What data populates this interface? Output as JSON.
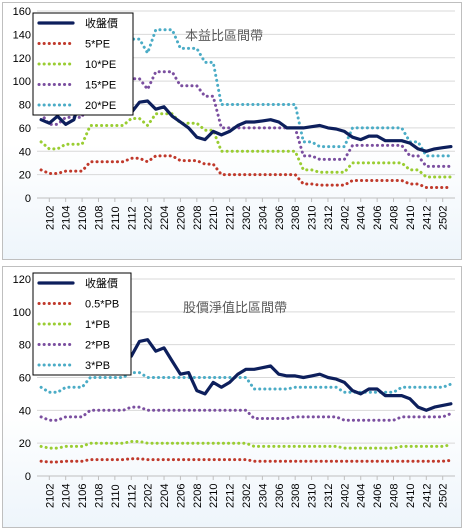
{
  "chart_data": [
    {
      "type": "line",
      "title": "本益比區間帶",
      "xlabel": "",
      "ylabel": "",
      "ylim": [
        0,
        160
      ],
      "yticks": [
        0,
        20,
        40,
        60,
        80,
        100,
        120,
        140,
        160
      ],
      "grid": true,
      "legend_position": "top-left",
      "x": [
        "2101",
        "2102",
        "2103",
        "2104",
        "2105",
        "2106",
        "2107",
        "2108",
        "2109",
        "2110",
        "2111",
        "2112",
        "2201",
        "2202",
        "2203",
        "2204",
        "2205",
        "2206",
        "2207",
        "2208",
        "2209",
        "2210",
        "2211",
        "2212",
        "2301",
        "2302",
        "2303",
        "2304",
        "2305",
        "2306",
        "2307",
        "2308",
        "2309",
        "2310",
        "2311",
        "2312",
        "2401",
        "2402",
        "2403",
        "2404",
        "2405",
        "2406",
        "2407",
        "2408",
        "2409",
        "2410",
        "2411",
        "2412",
        "2501",
        "2502",
        "2503"
      ],
      "xtick_labels": [
        "2102",
        "2104",
        "2106",
        "2108",
        "2110",
        "2112",
        "2202",
        "2204",
        "2206",
        "2208",
        "2210",
        "2212",
        "2302",
        "2304",
        "2306",
        "2308",
        "2310",
        "2312",
        "2402",
        "2404",
        "2406",
        "2408",
        "2410",
        "2412",
        "2502"
      ],
      "series": [
        {
          "name": "收盤價",
          "color": "#0d1f5c",
          "style": "solid",
          "values": [
            67,
            64,
            70,
            63,
            67,
            90,
            83,
            77,
            75,
            77,
            74,
            73,
            82,
            83,
            76,
            78,
            70,
            65,
            60,
            52,
            50,
            57,
            54,
            57,
            62,
            65,
            65,
            66,
            67,
            65,
            60,
            60,
            60,
            61,
            62,
            60,
            59,
            57,
            52,
            50,
            53,
            53,
            49,
            49,
            49,
            47,
            42,
            40,
            42,
            43,
            44
          ]
        },
        {
          "name": "5*PE",
          "color": "#c0392b",
          "style": "dotted",
          "values": [
            24,
            21,
            21,
            23,
            23,
            23,
            31,
            31,
            31,
            31,
            31,
            34,
            34,
            31,
            36,
            36,
            36,
            32,
            32,
            32,
            29,
            29,
            20,
            20,
            20,
            20,
            20,
            20,
            20,
            20,
            20,
            20,
            12,
            12,
            11,
            11,
            11,
            11,
            15,
            15,
            15,
            15,
            15,
            15,
            15,
            12,
            12,
            9,
            9,
            9,
            9
          ]
        },
        {
          "name": "10*PE",
          "color": "#9acd32",
          "style": "dotted",
          "values": [
            48,
            42,
            42,
            46,
            46,
            46,
            62,
            62,
            62,
            62,
            62,
            68,
            68,
            62,
            72,
            72,
            72,
            64,
            64,
            64,
            58,
            58,
            40,
            40,
            40,
            40,
            40,
            40,
            40,
            40,
            40,
            40,
            24,
            24,
            22,
            22,
            22,
            22,
            30,
            30,
            30,
            30,
            30,
            30,
            30,
            24,
            24,
            18,
            18,
            18,
            18
          ]
        },
        {
          "name": "15*PE",
          "color": "#7b4fa0",
          "style": "dotted",
          "values": [
            72,
            63,
            63,
            69,
            69,
            69,
            93,
            93,
            93,
            93,
            93,
            102,
            102,
            93,
            108,
            108,
            108,
            96,
            96,
            96,
            87,
            87,
            60,
            60,
            60,
            60,
            60,
            60,
            60,
            60,
            60,
            60,
            36,
            36,
            33,
            33,
            33,
            33,
            45,
            45,
            45,
            45,
            45,
            45,
            45,
            36,
            36,
            27,
            27,
            27,
            27
          ]
        },
        {
          "name": "20*PE",
          "color": "#4bacc6",
          "style": "dotted",
          "values": [
            96,
            84,
            84,
            92,
            92,
            92,
            124,
            124,
            124,
            124,
            124,
            136,
            136,
            124,
            144,
            144,
            144,
            128,
            128,
            128,
            116,
            116,
            80,
            80,
            80,
            80,
            80,
            80,
            80,
            80,
            80,
            80,
            48,
            48,
            44,
            44,
            44,
            44,
            60,
            60,
            60,
            60,
            60,
            60,
            60,
            48,
            48,
            36,
            36,
            36,
            36
          ]
        }
      ]
    },
    {
      "type": "line",
      "title": "股價淨值比區間帶",
      "xlabel": "",
      "ylabel": "",
      "ylim": [
        0,
        120
      ],
      "yticks": [
        0,
        20,
        40,
        60,
        80,
        100,
        120
      ],
      "grid": true,
      "legend_position": "top-left",
      "x": [
        "2101",
        "2102",
        "2103",
        "2104",
        "2105",
        "2106",
        "2107",
        "2108",
        "2109",
        "2110",
        "2111",
        "2112",
        "2201",
        "2202",
        "2203",
        "2204",
        "2205",
        "2206",
        "2207",
        "2208",
        "2209",
        "2210",
        "2211",
        "2212",
        "2301",
        "2302",
        "2303",
        "2304",
        "2305",
        "2306",
        "2307",
        "2308",
        "2309",
        "2310",
        "2311",
        "2312",
        "2401",
        "2402",
        "2403",
        "2404",
        "2405",
        "2406",
        "2407",
        "2408",
        "2409",
        "2410",
        "2411",
        "2412",
        "2501",
        "2502",
        "2503"
      ],
      "xtick_labels": [
        "2102",
        "2104",
        "2106",
        "2108",
        "2110",
        "2112",
        "2202",
        "2204",
        "2206",
        "2208",
        "2210",
        "2212",
        "2302",
        "2304",
        "2306",
        "2308",
        "2310",
        "2312",
        "2402",
        "2404",
        "2406",
        "2408",
        "2410",
        "2412",
        "2502"
      ],
      "series": [
        {
          "name": "收盤價",
          "color": "#0d1f5c",
          "style": "solid",
          "values": [
            67,
            64,
            70,
            63,
            67,
            90,
            83,
            77,
            75,
            77,
            74,
            73,
            82,
            83,
            76,
            78,
            70,
            62,
            63,
            52,
            50,
            57,
            54,
            57,
            62,
            65,
            65,
            66,
            67,
            62,
            61,
            61,
            60,
            61,
            62,
            60,
            59,
            57,
            52,
            50,
            53,
            53,
            49,
            49,
            49,
            47,
            42,
            40,
            42,
            43,
            44
          ]
        },
        {
          "name": "0.5*PB",
          "color": "#c0392b",
          "style": "dotted",
          "values": [
            9,
            8.5,
            8.5,
            9,
            9,
            9,
            10,
            10,
            10,
            10,
            10,
            10.5,
            10.5,
            10,
            10,
            10,
            10,
            10,
            10,
            10,
            10,
            10,
            10,
            10,
            10,
            10,
            9,
            9,
            9,
            9,
            9,
            9,
            9,
            9,
            9,
            9,
            9,
            9,
            9,
            9,
            9,
            9,
            9,
            9,
            9,
            9,
            9,
            9,
            9,
            9,
            9.5
          ]
        },
        {
          "name": "1*PB",
          "color": "#9acd32",
          "style": "dotted",
          "values": [
            18,
            17,
            17,
            18,
            18,
            18,
            20,
            20,
            20,
            20,
            20,
            21,
            21,
            20,
            20,
            20,
            20,
            20,
            20,
            20,
            20,
            20,
            20,
            20,
            20,
            20,
            18,
            18,
            18,
            18,
            18,
            18,
            18,
            18,
            18,
            18,
            18,
            17,
            17,
            17,
            17,
            17,
            17,
            17,
            18,
            18,
            18,
            18,
            18,
            18,
            19
          ]
        },
        {
          "name": "2*PB",
          "color": "#7b4fa0",
          "style": "dotted",
          "values": [
            36,
            34,
            34,
            36,
            36,
            36,
            40,
            40,
            40,
            40,
            40,
            42,
            42,
            40,
            40,
            40,
            40,
            40,
            40,
            40,
            40,
            40,
            40,
            40,
            40,
            40,
            35,
            35,
            35,
            35,
            35,
            36,
            36,
            36,
            36,
            36,
            36,
            34,
            34,
            34,
            34,
            34,
            34,
            34,
            36,
            36,
            36,
            36,
            36,
            36,
            38
          ]
        },
        {
          "name": "3*PB",
          "color": "#4bacc6",
          "style": "dotted",
          "values": [
            54,
            51,
            51,
            54,
            54,
            54,
            60,
            60,
            60,
            60,
            60,
            63,
            63,
            60,
            60,
            60,
            60,
            60,
            60,
            60,
            60,
            60,
            60,
            60,
            60,
            60,
            53,
            53,
            53,
            53,
            53,
            54,
            54,
            54,
            54,
            54,
            54,
            51,
            51,
            51,
            51,
            51,
            51,
            51,
            54,
            54,
            54,
            54,
            54,
            54,
            56
          ]
        }
      ]
    }
  ]
}
